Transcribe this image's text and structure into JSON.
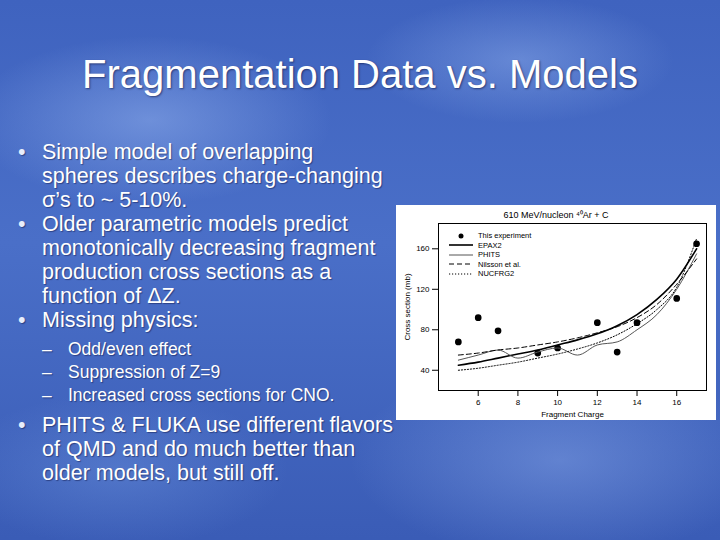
{
  "slide": {
    "title": "Fragmentation Data vs. Models",
    "bullets": [
      {
        "text": "Simple model of overlapping spheres describes charge-changing σ’s to ~ 5-10%."
      },
      {
        "text": "Older parametric models predict monotonically decreasing fragment production cross sections as a function of ΔZ."
      },
      {
        "text": "Missing physics:",
        "sub": [
          "Odd/even effect",
          "Suppression of Z=9",
          "Increased cross sections for CNO."
        ]
      },
      {
        "text": "PHITS & FLUKA use different flavors of QMD and do much better than older models, but still off."
      }
    ]
  },
  "chart_data": {
    "type": "line",
    "title": "610 MeV/nucleon ⁴⁰Ar + C",
    "x_label": "Fragment Charge",
    "y_label": "Cross section (mb)",
    "x": [
      5,
      6,
      7,
      8,
      9,
      10,
      11,
      12,
      13,
      14,
      15,
      16,
      17
    ],
    "xlim": [
      4,
      17.5
    ],
    "xticks": [
      6,
      8,
      10,
      12,
      14,
      16
    ],
    "ylim": [
      20,
      185
    ],
    "yticks": [
      40,
      80,
      120,
      160
    ],
    "legend": "top-left",
    "series": [
      {
        "name": "This experiment",
        "type": "scatter",
        "marker": "circle",
        "color": "#000000",
        "values": [
          68,
          92,
          79,
          null,
          57,
          62,
          null,
          87,
          58,
          87,
          null,
          111,
          165
        ]
      },
      {
        "name": "EPAX2",
        "type": "line",
        "line_style": "solid",
        "color": "#000000",
        "values": [
          45,
          48,
          52,
          56,
          60,
          65,
          70,
          76,
          84,
          95,
          110,
          130,
          160
        ]
      },
      {
        "name": "PHITS",
        "type": "line",
        "line_style": "solid",
        "color": "#555555",
        "values": [
          50,
          55,
          60,
          52,
          58,
          62,
          55,
          65,
          68,
          80,
          95,
          120,
          155
        ]
      },
      {
        "name": "Nilsson et al.",
        "type": "line",
        "line_style": "dashed",
        "color": "#000000",
        "values": [
          55,
          57,
          60,
          62,
          65,
          68,
          72,
          77,
          83,
          92,
          105,
          125,
          150
        ]
      },
      {
        "name": "NUCFRG2",
        "type": "line",
        "line_style": "dotted",
        "color": "#000000",
        "values": [
          40,
          42,
          45,
          48,
          52,
          56,
          61,
          67,
          75,
          86,
          100,
          122,
          170
        ]
      }
    ]
  }
}
